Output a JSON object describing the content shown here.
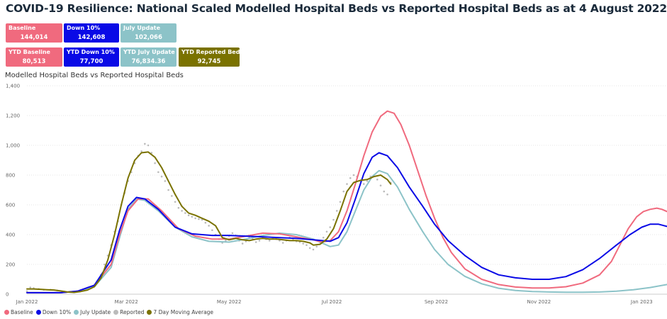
{
  "title": "COVID-19 Resilience: National Scaled Modelled Hospital Beds vs Reported Hospital Beds as at 4 August 2022",
  "cards": [
    {
      "label": "Baseline",
      "value": "144,014",
      "color": "#f06a7e"
    },
    {
      "label": "Down 10%",
      "value": "142,608",
      "color": "#0a0ae6"
    },
    {
      "label": "July Update",
      "value": "102,066",
      "color": "#8cc3c8"
    },
    {
      "label": "YTD Baseline",
      "value": "80,513",
      "color": "#f06a7e"
    },
    {
      "label": "YTD Down 10%",
      "value": "77,700",
      "color": "#0a0ae6"
    },
    {
      "label": "YTD July Update",
      "value": "76,834.36",
      "color": "#8cc3c8"
    },
    {
      "label": "YTD Reported Beds",
      "value": "92,745",
      "color": "#7a7200"
    }
  ],
  "chart_data": {
    "type": "line",
    "title": "Modelled Hospital Beds vs Reported Hospital Beds",
    "x_ticks": [
      "Jan 2022",
      "Mar 2022",
      "May 2022",
      "Jul 2022",
      "Sep 2022",
      "Nov 2022",
      "Jan 2023"
    ],
    "x_tick_days": [
      0,
      59,
      120,
      181,
      243,
      304,
      365
    ],
    "x_range_days": [
      0,
      380
    ],
    "x_reference": "2022-01-01",
    "y_ticks": [
      "0",
      "200",
      "400",
      "600",
      "800",
      "1,000",
      "1,200",
      "1,400"
    ],
    "ylim": [
      0,
      1400
    ],
    "grid": true,
    "legend_position": "bottom-left",
    "series": [
      {
        "name": "Baseline",
        "color": "#f06a7e",
        "style": "line",
        "points": [
          [
            0,
            10
          ],
          [
            20,
            10
          ],
          [
            30,
            20
          ],
          [
            40,
            60
          ],
          [
            50,
            200
          ],
          [
            55,
            400
          ],
          [
            60,
            560
          ],
          [
            66,
            640
          ],
          [
            72,
            640
          ],
          [
            80,
            560
          ],
          [
            90,
            440
          ],
          [
            100,
            390
          ],
          [
            110,
            370
          ],
          [
            120,
            370
          ],
          [
            130,
            390
          ],
          [
            140,
            410
          ],
          [
            150,
            405
          ],
          [
            160,
            385
          ],
          [
            170,
            365
          ],
          [
            175,
            350
          ],
          [
            180,
            360
          ],
          [
            185,
            420
          ],
          [
            190,
            560
          ],
          [
            195,
            740
          ],
          [
            200,
            930
          ],
          [
            205,
            1090
          ],
          [
            210,
            1195
          ],
          [
            214,
            1230
          ],
          [
            218,
            1215
          ],
          [
            222,
            1140
          ],
          [
            227,
            1000
          ],
          [
            232,
            830
          ],
          [
            237,
            660
          ],
          [
            242,
            510
          ],
          [
            247,
            380
          ],
          [
            252,
            280
          ],
          [
            260,
            170
          ],
          [
            270,
            100
          ],
          [
            280,
            65
          ],
          [
            290,
            48
          ],
          [
            300,
            42
          ],
          [
            310,
            42
          ],
          [
            320,
            50
          ],
          [
            330,
            75
          ],
          [
            340,
            130
          ],
          [
            347,
            220
          ],
          [
            352,
            330
          ],
          [
            357,
            440
          ],
          [
            362,
            520
          ],
          [
            366,
            555
          ],
          [
            370,
            570
          ],
          [
            374,
            578
          ],
          [
            377,
            570
          ],
          [
            380,
            555
          ]
        ]
      },
      {
        "name": "Down 10%",
        "color": "#0a0ae6",
        "style": "line",
        "points": [
          [
            0,
            10
          ],
          [
            20,
            10
          ],
          [
            30,
            20
          ],
          [
            40,
            60
          ],
          [
            50,
            230
          ],
          [
            55,
            430
          ],
          [
            60,
            590
          ],
          [
            65,
            650
          ],
          [
            70,
            640
          ],
          [
            78,
            570
          ],
          [
            88,
            450
          ],
          [
            98,
            405
          ],
          [
            110,
            395
          ],
          [
            120,
            395
          ],
          [
            130,
            390
          ],
          [
            140,
            385
          ],
          [
            150,
            380
          ],
          [
            160,
            375
          ],
          [
            170,
            365
          ],
          [
            180,
            355
          ],
          [
            185,
            380
          ],
          [
            190,
            480
          ],
          [
            195,
            640
          ],
          [
            200,
            810
          ],
          [
            205,
            920
          ],
          [
            209,
            950
          ],
          [
            214,
            930
          ],
          [
            220,
            850
          ],
          [
            227,
            720
          ],
          [
            235,
            590
          ],
          [
            242,
            470
          ],
          [
            250,
            360
          ],
          [
            260,
            260
          ],
          [
            270,
            180
          ],
          [
            280,
            130
          ],
          [
            290,
            110
          ],
          [
            300,
            100
          ],
          [
            310,
            100
          ],
          [
            320,
            118
          ],
          [
            330,
            165
          ],
          [
            340,
            240
          ],
          [
            350,
            330
          ],
          [
            358,
            400
          ],
          [
            365,
            450
          ],
          [
            370,
            470
          ],
          [
            375,
            470
          ],
          [
            380,
            455
          ]
        ]
      },
      {
        "name": "July Update",
        "color": "#8cc3c8",
        "style": "line",
        "points": [
          [
            0,
            10
          ],
          [
            20,
            10
          ],
          [
            30,
            20
          ],
          [
            40,
            50
          ],
          [
            50,
            180
          ],
          [
            55,
            380
          ],
          [
            60,
            570
          ],
          [
            65,
            640
          ],
          [
            70,
            630
          ],
          [
            78,
            560
          ],
          [
            88,
            450
          ],
          [
            98,
            385
          ],
          [
            108,
            355
          ],
          [
            120,
            350
          ],
          [
            130,
            370
          ],
          [
            140,
            395
          ],
          [
            150,
            410
          ],
          [
            160,
            400
          ],
          [
            170,
            370
          ],
          [
            180,
            320
          ],
          [
            185,
            330
          ],
          [
            190,
            420
          ],
          [
            195,
            560
          ],
          [
            200,
            700
          ],
          [
            205,
            790
          ],
          [
            209,
            830
          ],
          [
            214,
            810
          ],
          [
            220,
            720
          ],
          [
            227,
            570
          ],
          [
            235,
            420
          ],
          [
            242,
            300
          ],
          [
            250,
            200
          ],
          [
            260,
            120
          ],
          [
            270,
            70
          ],
          [
            280,
            40
          ],
          [
            290,
            25
          ],
          [
            300,
            18
          ],
          [
            310,
            15
          ],
          [
            320,
            13
          ],
          [
            330,
            13
          ],
          [
            340,
            15
          ],
          [
            350,
            20
          ],
          [
            360,
            30
          ],
          [
            370,
            45
          ],
          [
            380,
            65
          ]
        ]
      },
      {
        "name": "Reported",
        "color": "#bbbbbb",
        "style": "dots",
        "points": [
          [
            0,
            20
          ],
          [
            2,
            45
          ],
          [
            4,
            40
          ],
          [
            7,
            35
          ],
          [
            10,
            30
          ],
          [
            14,
            30
          ],
          [
            18,
            25
          ],
          [
            22,
            18
          ],
          [
            26,
            15
          ],
          [
            30,
            20
          ],
          [
            34,
            28
          ],
          [
            38,
            40
          ],
          [
            42,
            80
          ],
          [
            44,
            130
          ],
          [
            46,
            200
          ],
          [
            48,
            260
          ],
          [
            50,
            330
          ],
          [
            52,
            420
          ],
          [
            54,
            490
          ],
          [
            56,
            600
          ],
          [
            58,
            680
          ],
          [
            60,
            760
          ],
          [
            62,
            820
          ],
          [
            64,
            880
          ],
          [
            66,
            930
          ],
          [
            68,
            960
          ],
          [
            70,
            1010
          ],
          [
            72,
            1000
          ],
          [
            74,
            950
          ],
          [
            76,
            880
          ],
          [
            78,
            820
          ],
          [
            80,
            790
          ],
          [
            82,
            760
          ],
          [
            84,
            700
          ],
          [
            86,
            660
          ],
          [
            88,
            620
          ],
          [
            90,
            580
          ],
          [
            92,
            560
          ],
          [
            94,
            545
          ],
          [
            96,
            530
          ],
          [
            98,
            520
          ],
          [
            100,
            510
          ],
          [
            102,
            505
          ],
          [
            104,
            500
          ],
          [
            106,
            480
          ],
          [
            108,
            460
          ],
          [
            110,
            430
          ],
          [
            112,
            400
          ],
          [
            114,
            370
          ],
          [
            116,
            345
          ],
          [
            118,
            360
          ],
          [
            120,
            390
          ],
          [
            122,
            410
          ],
          [
            124,
            395
          ],
          [
            126,
            360
          ],
          [
            128,
            340
          ],
          [
            130,
            355
          ],
          [
            132,
            380
          ],
          [
            134,
            370
          ],
          [
            136,
            350
          ],
          [
            138,
            360
          ],
          [
            140,
            385
          ],
          [
            142,
            370
          ],
          [
            144,
            360
          ],
          [
            146,
            375
          ],
          [
            148,
            370
          ],
          [
            150,
            360
          ],
          [
            152,
            345
          ],
          [
            154,
            360
          ],
          [
            156,
            380
          ],
          [
            158,
            365
          ],
          [
            160,
            355
          ],
          [
            162,
            350
          ],
          [
            164,
            340
          ],
          [
            166,
            330
          ],
          [
            168,
            310
          ],
          [
            170,
            300
          ],
          [
            172,
            320
          ],
          [
            174,
            350
          ],
          [
            176,
            380
          ],
          [
            178,
            420
          ],
          [
            180,
            450
          ],
          [
            182,
            500
          ],
          [
            184,
            560
          ],
          [
            186,
            620
          ],
          [
            188,
            690
          ],
          [
            190,
            740
          ],
          [
            192,
            780
          ],
          [
            194,
            800
          ],
          [
            196,
            790
          ],
          [
            198,
            760
          ],
          [
            200,
            740
          ],
          [
            202,
            760
          ],
          [
            204,
            790
          ],
          [
            206,
            800
          ],
          [
            208,
            770
          ],
          [
            210,
            730
          ],
          [
            212,
            690
          ],
          [
            214,
            670
          ],
          [
            216,
            750
          ]
        ]
      },
      {
        "name": "7 Day Moving Average",
        "color": "#7a7200",
        "style": "line",
        "points": [
          [
            0,
            35
          ],
          [
            4,
            35
          ],
          [
            8,
            33
          ],
          [
            12,
            30
          ],
          [
            16,
            28
          ],
          [
            20,
            22
          ],
          [
            24,
            15
          ],
          [
            28,
            12
          ],
          [
            32,
            18
          ],
          [
            36,
            28
          ],
          [
            40,
            50
          ],
          [
            44,
            110
          ],
          [
            48,
            230
          ],
          [
            52,
            400
          ],
          [
            56,
            600
          ],
          [
            60,
            780
          ],
          [
            64,
            900
          ],
          [
            68,
            950
          ],
          [
            72,
            955
          ],
          [
            76,
            920
          ],
          [
            80,
            850
          ],
          [
            84,
            760
          ],
          [
            88,
            670
          ],
          [
            92,
            590
          ],
          [
            96,
            545
          ],
          [
            100,
            530
          ],
          [
            104,
            510
          ],
          [
            108,
            490
          ],
          [
            112,
            460
          ],
          [
            116,
            380
          ],
          [
            120,
            365
          ],
          [
            124,
            375
          ],
          [
            128,
            365
          ],
          [
            132,
            360
          ],
          [
            136,
            370
          ],
          [
            140,
            375
          ],
          [
            144,
            370
          ],
          [
            148,
            370
          ],
          [
            152,
            365
          ],
          [
            156,
            360
          ],
          [
            160,
            360
          ],
          [
            164,
            355
          ],
          [
            168,
            345
          ],
          [
            170,
            330
          ],
          [
            174,
            335
          ],
          [
            178,
            370
          ],
          [
            182,
            440
          ],
          [
            186,
            560
          ],
          [
            190,
            690
          ],
          [
            194,
            750
          ],
          [
            198,
            765
          ],
          [
            202,
            770
          ],
          [
            206,
            790
          ],
          [
            210,
            800
          ],
          [
            214,
            770
          ],
          [
            216,
            740
          ]
        ]
      }
    ]
  }
}
